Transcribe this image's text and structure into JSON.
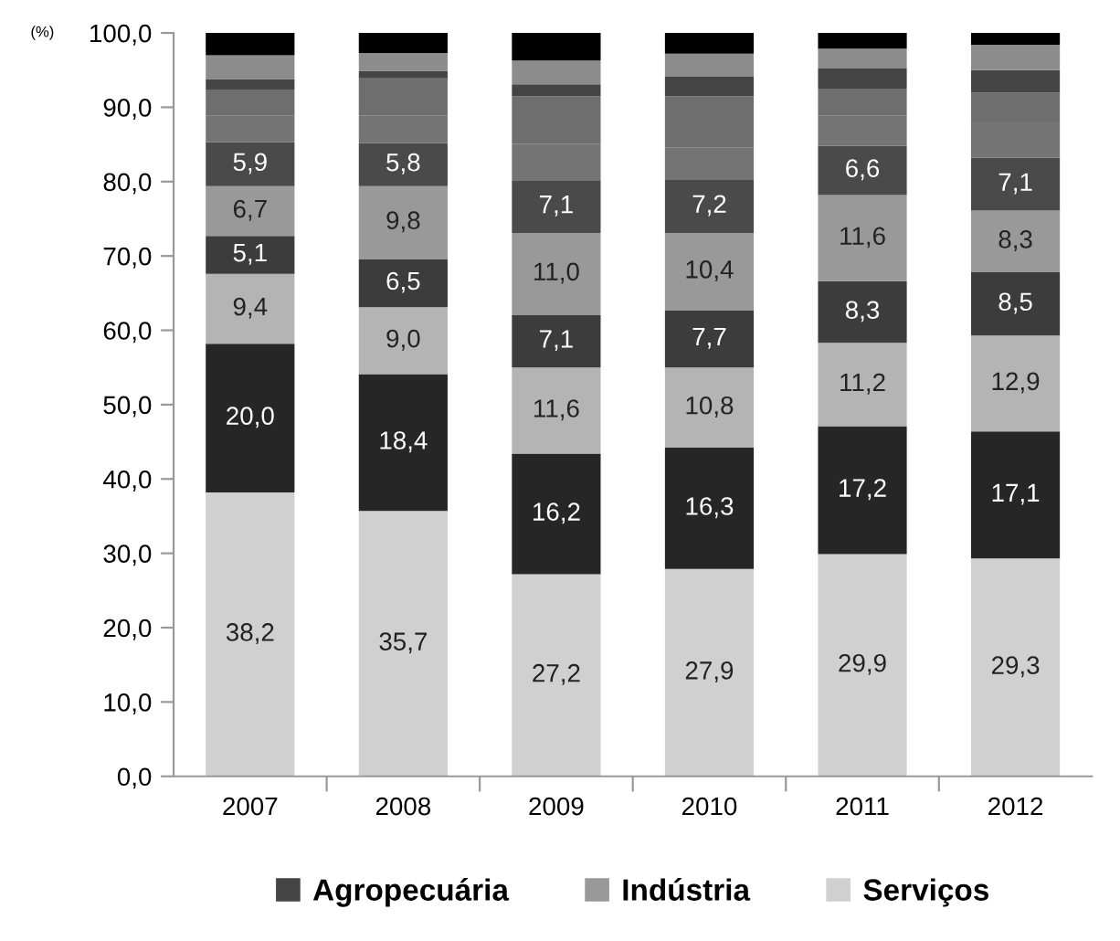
{
  "chart_data": {
    "type": "bar",
    "stacked": true,
    "ylabel": "(%)",
    "categories": [
      "2007",
      "2008",
      "2009",
      "2010",
      "2011",
      "2012"
    ],
    "series": [
      {
        "name": "Serviços",
        "color": "#d0d0d0",
        "values": [
          38.2,
          35.7,
          27.2,
          27.9,
          29.9,
          29.3
        ],
        "value_labels": [
          "38,2",
          "35,7",
          "27,2",
          "27,9",
          "29,9",
          "29,3"
        ]
      },
      {
        "color": "#262626",
        "values": [
          20.0,
          18.4,
          16.2,
          16.3,
          17.2,
          17.1
        ],
        "value_labels": [
          "20,0",
          "18,4",
          "16,2",
          "16,3",
          "17,2",
          "17,1"
        ]
      },
      {
        "color": "#b4b4b4",
        "values": [
          9.4,
          9.0,
          11.6,
          10.8,
          11.2,
          12.9
        ],
        "value_labels": [
          "9,4",
          "9,0",
          "11,6",
          "10,8",
          "11,2",
          "12,9"
        ]
      },
      {
        "color": "#3c3c3c",
        "values": [
          5.1,
          6.5,
          7.1,
          7.7,
          8.3,
          8.5
        ],
        "value_labels": [
          "5,1",
          "6,5",
          "7,1",
          "7,7",
          "8,3",
          "8,5"
        ]
      },
      {
        "name": "Indústria",
        "color": "#999999",
        "values": [
          6.7,
          9.8,
          11.0,
          10.4,
          11.6,
          8.3
        ],
        "value_labels": [
          "6,7",
          "9,8",
          "11,0",
          "10,4",
          "11,6",
          "8,3"
        ]
      },
      {
        "color": "#4a4a4a",
        "values": [
          5.9,
          5.8,
          7.1,
          7.2,
          6.6,
          7.1
        ],
        "value_labels": [
          "5,9",
          "5,8",
          "7,1",
          "7,2",
          "6,6",
          "7,1"
        ]
      },
      {
        "color": "#747474",
        "values": [
          3.6,
          3.7,
          4.9,
          4.3,
          4.1,
          4.9
        ]
      },
      {
        "color": "#6e6e6e",
        "values": [
          3.5,
          5.0,
          6.4,
          6.9,
          3.6,
          3.9
        ]
      },
      {
        "name": "Agropecuária",
        "color": "#454545",
        "values": [
          1.4,
          1.0,
          1.6,
          2.6,
          2.7,
          3.0
        ]
      },
      {
        "color": "#8c8c8c",
        "values": [
          3.2,
          2.4,
          3.2,
          3.1,
          2.7,
          3.4
        ]
      },
      {
        "color": "#000000",
        "values": [
          3.0,
          2.7,
          3.7,
          2.8,
          2.1,
          1.6
        ]
      }
    ],
    "ylim": [
      0,
      100
    ],
    "yticks": [
      {
        "value": 0,
        "label": "0,0"
      },
      {
        "value": 10,
        "label": "10,0"
      },
      {
        "value": 20,
        "label": "20,0"
      },
      {
        "value": 30,
        "label": "30,0"
      },
      {
        "value": 40,
        "label": "40,0"
      },
      {
        "value": 50,
        "label": "50,0"
      },
      {
        "value": 60,
        "label": "60,0"
      },
      {
        "value": 70,
        "label": "70,0"
      },
      {
        "value": 80,
        "label": "80,0"
      },
      {
        "value": 90,
        "label": "90,0"
      },
      {
        "value": 100,
        "label": "100,0"
      }
    ],
    "grid": false,
    "legend": "bottom"
  }
}
